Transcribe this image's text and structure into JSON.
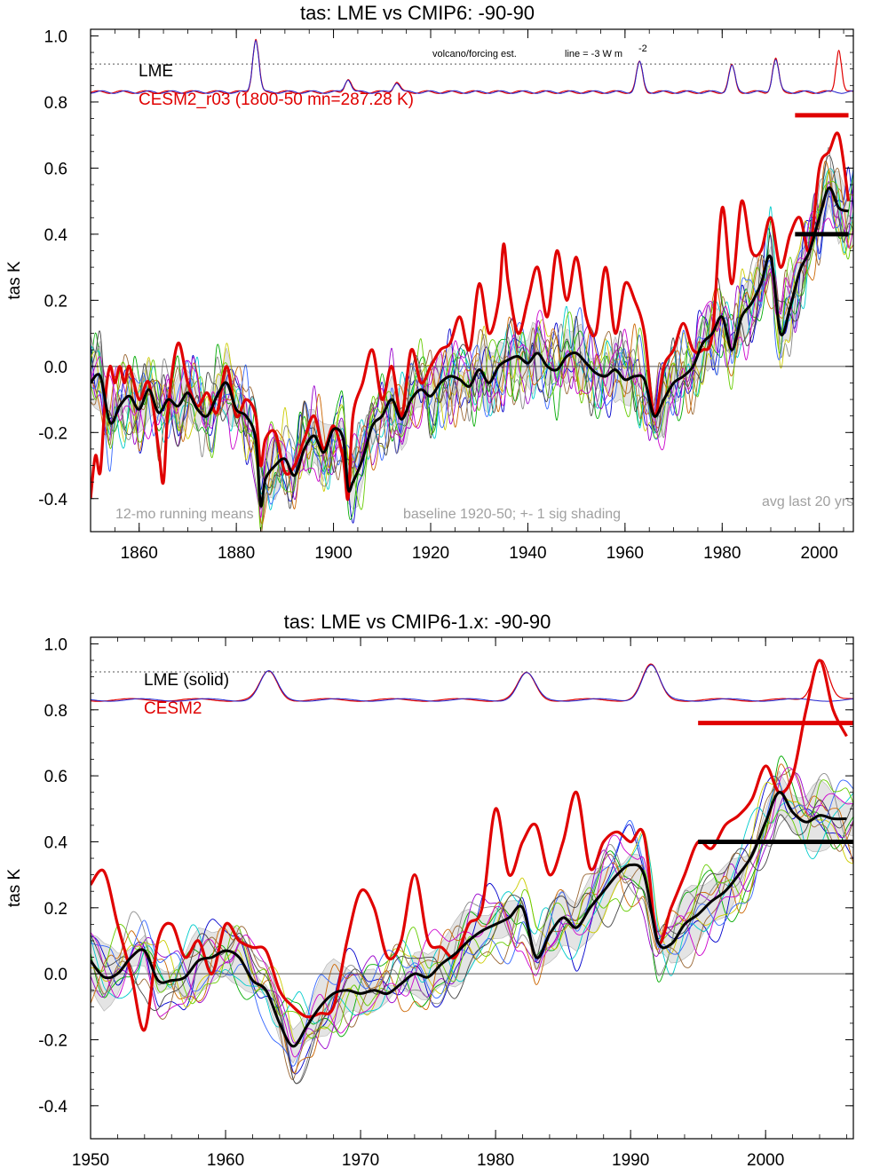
{
  "chart_data": [
    {
      "type": "line",
      "title": "tas: LME vs CMIP6: -90-90",
      "ylabel": "tas K",
      "xlim": [
        1850,
        2007
      ],
      "ylim": [
        -0.5,
        1.02
      ],
      "xticks": [
        1860,
        1880,
        1900,
        1920,
        1940,
        1960,
        1980,
        2000
      ],
      "yticks": [
        -0.4,
        -0.2,
        0.0,
        0.2,
        0.4,
        0.6,
        0.8,
        1.0
      ],
      "ytick_labels": [
        "-0.4",
        "-0.2",
        "0.0",
        "0.2",
        "0.4",
        "0.6",
        "0.8",
        "1.0"
      ],
      "zero_line": 0,
      "volcano_ref": 0.915,
      "legend": [
        {
          "label": "LME",
          "color": "#000000"
        },
        {
          "label": "CESM2_r03 (1800-50 mn=287.28 K)",
          "color": "#e00000"
        }
      ],
      "annotations": {
        "volcano": "volcano/forcing est.",
        "line_note": "line = -3 W m",
        "line_sup": "-2",
        "bl": "12-mo running means",
        "bm": "baseline 1920-50; +- 1 sig shading",
        "br": "avg last 20 yrs"
      },
      "avg_last_20": {
        "x0": 1995,
        "x1": 2006,
        "lme": 0.4,
        "cesm": 0.76
      },
      "volcano_base": 0.83,
      "volcano_peaks": [
        [
          1884,
          0.99
        ],
        [
          1903,
          0.87
        ],
        [
          1913,
          0.86
        ],
        [
          1963,
          0.92
        ],
        [
          1982,
          0.91
        ],
        [
          1991,
          0.93
        ]
      ],
      "volcano_cesm_extra": [
        2004,
        0.96
      ],
      "series": [
        {
          "name": "LME",
          "color": "#000000",
          "x": [
            1850,
            1852,
            1854,
            1856,
            1858,
            1860,
            1862,
            1864,
            1866,
            1868,
            1870,
            1872,
            1874,
            1876,
            1878,
            1880,
            1882,
            1884,
            1885,
            1886,
            1888,
            1890,
            1892,
            1894,
            1896,
            1898,
            1900,
            1902,
            1903,
            1904,
            1906,
            1908,
            1910,
            1912,
            1914,
            1916,
            1918,
            1920,
            1922,
            1924,
            1926,
            1928,
            1930,
            1932,
            1934,
            1936,
            1938,
            1940,
            1942,
            1944,
            1946,
            1948,
            1950,
            1952,
            1954,
            1956,
            1958,
            1960,
            1962,
            1964,
            1966,
            1968,
            1970,
            1972,
            1974,
            1976,
            1978,
            1980,
            1982,
            1984,
            1986,
            1988,
            1990,
            1992,
            1994,
            1996,
            1998,
            2000,
            2002,
            2004,
            2006
          ],
          "y": [
            -0.05,
            -0.03,
            -0.17,
            -0.12,
            -0.09,
            -0.13,
            -0.07,
            -0.14,
            -0.1,
            -0.12,
            -0.08,
            -0.13,
            -0.15,
            -0.09,
            -0.05,
            -0.13,
            -0.15,
            -0.22,
            -0.42,
            -0.34,
            -0.3,
            -0.28,
            -0.33,
            -0.25,
            -0.21,
            -0.26,
            -0.19,
            -0.22,
            -0.37,
            -0.35,
            -0.28,
            -0.18,
            -0.15,
            -0.1,
            -0.16,
            -0.1,
            -0.07,
            -0.09,
            -0.05,
            -0.03,
            -0.04,
            -0.06,
            -0.01,
            -0.05,
            0.0,
            0.02,
            0.03,
            0.01,
            0.04,
            0.0,
            -0.01,
            0.03,
            0.04,
            0.01,
            -0.02,
            -0.03,
            -0.01,
            -0.04,
            -0.03,
            -0.04,
            -0.15,
            -0.1,
            -0.05,
            -0.03,
            0.0,
            0.07,
            0.1,
            0.15,
            0.05,
            0.15,
            0.19,
            0.25,
            0.33,
            0.1,
            0.18,
            0.29,
            0.35,
            0.45,
            0.54,
            0.48,
            0.47
          ]
        },
        {
          "name": "CESM2",
          "color": "#e00000",
          "x": [
            1850,
            1851,
            1852,
            1853,
            1854,
            1855,
            1856,
            1857,
            1858,
            1860,
            1862,
            1864,
            1865,
            1866,
            1868,
            1870,
            1872,
            1874,
            1876,
            1878,
            1880,
            1882,
            1884,
            1885,
            1886,
            1888,
            1890,
            1892,
            1894,
            1896,
            1898,
            1900,
            1902,
            1903,
            1904,
            1906,
            1908,
            1910,
            1912,
            1914,
            1916,
            1918,
            1920,
            1922,
            1924,
            1926,
            1928,
            1930,
            1932,
            1934,
            1935,
            1936,
            1938,
            1940,
            1942,
            1944,
            1946,
            1948,
            1950,
            1952,
            1954,
            1956,
            1958,
            1960,
            1962,
            1964,
            1966,
            1968,
            1970,
            1972,
            1974,
            1976,
            1978,
            1980,
            1982,
            1984,
            1986,
            1988,
            1990,
            1992,
            1994,
            1996,
            1998,
            2000,
            2002,
            2004,
            2006
          ],
          "y": [
            -0.4,
            -0.27,
            -0.32,
            -0.1,
            0.0,
            -0.05,
            0.0,
            -0.05,
            0.0,
            -0.1,
            -0.05,
            -0.25,
            -0.35,
            -0.12,
            0.07,
            -0.05,
            -0.12,
            -0.08,
            -0.14,
            0.0,
            -0.15,
            -0.1,
            -0.15,
            -0.3,
            -0.22,
            -0.2,
            -0.32,
            -0.3,
            -0.22,
            -0.15,
            -0.25,
            -0.18,
            -0.28,
            -0.4,
            -0.15,
            -0.05,
            0.05,
            -0.1,
            0.0,
            -0.15,
            0.05,
            -0.05,
            0.0,
            0.05,
            0.07,
            0.15,
            0.05,
            0.25,
            0.1,
            0.2,
            0.37,
            0.25,
            0.1,
            0.2,
            0.3,
            0.15,
            0.35,
            0.2,
            0.33,
            0.15,
            0.1,
            0.3,
            0.1,
            0.25,
            0.2,
            0.1,
            -0.15,
            0.0,
            0.05,
            0.13,
            0.05,
            0.05,
            0.1,
            0.48,
            0.25,
            0.5,
            0.35,
            0.35,
            0.45,
            0.3,
            0.4,
            0.45,
            0.35,
            0.6,
            0.65,
            0.7,
            0.5
          ]
        }
      ]
    },
    {
      "type": "line",
      "title": "tas: LME vs CMIP6-1.x: -90-90",
      "ylabel": "tas K",
      "xlim": [
        1950,
        2006.5
      ],
      "ylim": [
        -0.5,
        1.02
      ],
      "xticks": [
        1950,
        1960,
        1970,
        1980,
        1990,
        2000
      ],
      "yticks": [
        -0.4,
        -0.2,
        0.0,
        0.2,
        0.4,
        0.6,
        0.8,
        1.0
      ],
      "ytick_labels": [
        "-0.4",
        "-0.2",
        "0.0",
        "0.2",
        "0.4",
        "0.6",
        "0.8",
        "1.0"
      ],
      "zero_line": 0,
      "volcano_ref": 0.915,
      "legend": [
        {
          "label": "LME (solid)",
          "color": "#000000"
        },
        {
          "label": "CESM2",
          "color": "#e00000"
        }
      ],
      "avg_last_20": {
        "x0": 1995,
        "x1": 2006.5,
        "lme": 0.4,
        "cesm": 0.76
      },
      "volcano_base": 0.83,
      "volcano_peaks": [
        [
          1963.2,
          0.915
        ],
        [
          1982.3,
          0.91
        ],
        [
          1991.5,
          0.935
        ]
      ],
      "volcano_cesm_extra": [
        2004.1,
        0.955
      ],
      "series": [
        {
          "name": "LME (solid)",
          "color": "#000000",
          "x": [
            1950,
            1951,
            1952,
            1953,
            1954,
            1955,
            1956,
            1957,
            1958,
            1959,
            1960,
            1961,
            1962,
            1963,
            1964,
            1965,
            1966,
            1967,
            1968,
            1969,
            1970,
            1971,
            1972,
            1973,
            1974,
            1975,
            1976,
            1977,
            1978,
            1979,
            1980,
            1981,
            1982,
            1983,
            1984,
            1985,
            1986,
            1987,
            1988,
            1989,
            1990,
            1991,
            1992,
            1993,
            1994,
            1995,
            1996,
            1997,
            1998,
            1999,
            2000,
            2001,
            2002,
            2003,
            2004,
            2005,
            2006
          ],
          "y": [
            0.04,
            -0.01,
            0.0,
            0.05,
            0.07,
            -0.02,
            -0.02,
            -0.01,
            0.04,
            0.05,
            0.07,
            0.05,
            -0.02,
            -0.05,
            -0.15,
            -0.22,
            -0.16,
            -0.1,
            -0.06,
            -0.05,
            -0.06,
            -0.05,
            -0.06,
            -0.03,
            0.0,
            -0.01,
            0.03,
            0.06,
            0.1,
            0.13,
            0.15,
            0.17,
            0.2,
            0.05,
            0.12,
            0.17,
            0.14,
            0.2,
            0.25,
            0.3,
            0.33,
            0.3,
            0.1,
            0.09,
            0.15,
            0.18,
            0.22,
            0.25,
            0.3,
            0.36,
            0.46,
            0.55,
            0.49,
            0.46,
            0.48,
            0.47,
            0.47
          ]
        },
        {
          "name": "CESM2",
          "color": "#e00000",
          "x": [
            1950,
            1951,
            1952,
            1953,
            1954,
            1955,
            1956,
            1957,
            1958,
            1959,
            1960,
            1961,
            1962,
            1963,
            1964,
            1965,
            1966,
            1967,
            1968,
            1969,
            1970,
            1971,
            1972,
            1973,
            1974,
            1975,
            1976,
            1977,
            1978,
            1979,
            1980,
            1981,
            1982,
            1983,
            1984,
            1985,
            1986,
            1987,
            1988,
            1989,
            1990,
            1991,
            1992,
            1993,
            1994,
            1995,
            1996,
            1997,
            1998,
            1999,
            2000,
            2001,
            2002,
            2003,
            2004,
            2005,
            2006
          ],
          "y": [
            0.27,
            0.31,
            0.15,
            0.0,
            -0.17,
            0.1,
            0.15,
            0.05,
            0.1,
            0.0,
            0.15,
            0.1,
            0.08,
            0.07,
            -0.05,
            -0.1,
            -0.13,
            -0.12,
            -0.1,
            0.1,
            0.25,
            0.2,
            0.05,
            0.1,
            0.3,
            0.1,
            0.08,
            0.05,
            0.15,
            0.2,
            0.5,
            0.3,
            0.4,
            0.45,
            0.3,
            0.4,
            0.55,
            0.32,
            0.4,
            0.43,
            0.4,
            0.42,
            0.1,
            0.2,
            0.3,
            0.4,
            0.38,
            0.45,
            0.48,
            0.53,
            0.63,
            0.55,
            0.6,
            0.8,
            0.95,
            0.8,
            0.72
          ]
        }
      ]
    }
  ]
}
